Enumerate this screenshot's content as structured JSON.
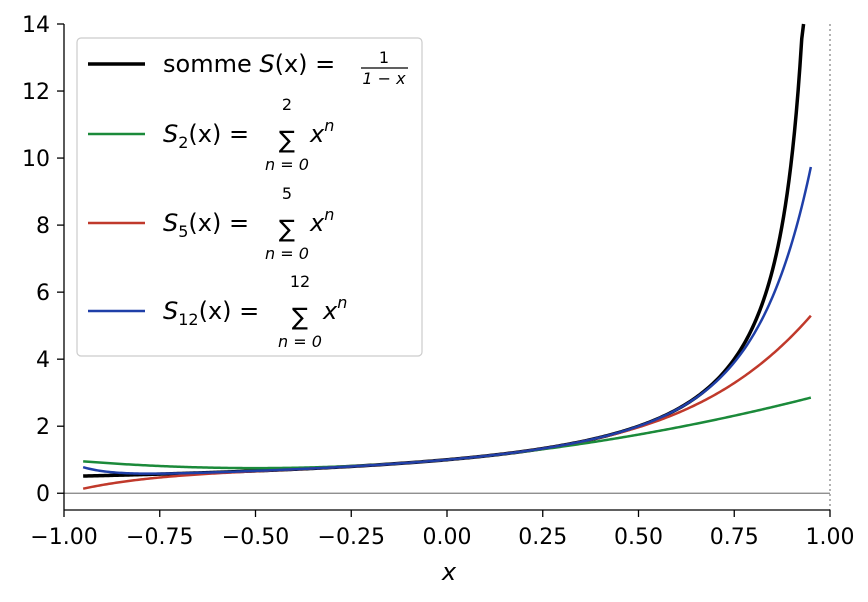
{
  "chart_data": {
    "type": "line",
    "xlabel": "x",
    "ylabel": "",
    "xlim": [
      -1.0,
      1.0
    ],
    "ylim": [
      -0.5,
      14
    ],
    "x_ticks": [
      -1.0,
      -0.75,
      -0.5,
      -0.25,
      0.0,
      0.25,
      0.5,
      0.75,
      1.0
    ],
    "x_tick_labels": [
      "−1.00",
      "−0.75",
      "−0.50",
      "−0.25",
      "0.00",
      "0.25",
      "0.50",
      "0.75",
      "1.00"
    ],
    "y_ticks": [
      0,
      2,
      4,
      6,
      8,
      10,
      12,
      14
    ],
    "y_tick_labels": [
      "0",
      "2",
      "4",
      "6",
      "8",
      "10",
      "12",
      "14"
    ],
    "grid": false,
    "legend_position": "top-left",
    "reference_lines": [
      {
        "orientation": "horizontal",
        "value": 0,
        "style": "solid",
        "color": "#808080"
      },
      {
        "orientation": "vertical",
        "value": 1.0,
        "style": "dotted",
        "color": "#808080"
      }
    ],
    "x_domain": [
      -0.95,
      0.95
    ],
    "series": [
      {
        "name": "somme S(x) = 1/(1−x)",
        "color": "#000000",
        "x": [
          -0.95,
          -0.75,
          -0.5,
          -0.25,
          0.0,
          0.25,
          0.5,
          0.6,
          0.7,
          0.75,
          0.8,
          0.85,
          0.9,
          0.93
        ],
        "y": [
          0.51,
          0.57,
          0.67,
          0.8,
          1.0,
          1.33,
          2.0,
          2.5,
          3.33,
          4.0,
          5.0,
          6.67,
          10.0,
          14.0
        ]
      },
      {
        "name": "S2(x) = ∑ n=0..2 x^n",
        "color": "#1b8a3a",
        "x": [
          -0.95,
          -0.75,
          -0.5,
          -0.25,
          0.0,
          0.25,
          0.5,
          0.75,
          0.95
        ],
        "y": [
          0.95,
          0.81,
          0.75,
          0.81,
          1.0,
          1.31,
          1.75,
          2.31,
          2.85
        ]
      },
      {
        "name": "S5(x) = ∑ n=0..5 x^n",
        "color": "#c0392b",
        "x": [
          -0.95,
          -0.75,
          -0.5,
          -0.25,
          0.0,
          0.25,
          0.5,
          0.75,
          0.95
        ],
        "y": [
          0.13,
          0.44,
          0.66,
          0.8,
          1.0,
          1.33,
          1.97,
          3.3,
          5.31
        ]
      },
      {
        "name": "S12(x) = ∑ n=0..12 x^n",
        "color": "#1f3fa8",
        "x": [
          -0.95,
          -0.75,
          -0.5,
          -0.25,
          0.0,
          0.25,
          0.5,
          0.75,
          0.95
        ],
        "y": [
          0.77,
          0.59,
          0.67,
          0.8,
          1.0,
          1.33,
          2.0,
          3.87,
          9.74
        ]
      }
    ]
  },
  "legend": {
    "entries": [
      {
        "prefix": "somme ",
        "fn": "S",
        "sub": "",
        "mid": "(x) = ",
        "frac_num": "1",
        "frac_den": "1 − x",
        "upper": "",
        "lower": "",
        "term": ""
      },
      {
        "prefix": "",
        "fn": "S",
        "sub": "2",
        "mid": "(x) = ",
        "frac_num": "",
        "frac_den": "",
        "upper": "2",
        "lower": "n = 0",
        "term": "x"
      },
      {
        "prefix": "",
        "fn": "S",
        "sub": "5",
        "mid": "(x) = ",
        "frac_num": "",
        "frac_den": "",
        "upper": "5",
        "lower": "n = 0",
        "term": "x"
      },
      {
        "prefix": "",
        "fn": "S",
        "sub": "12",
        "mid": "(x) = ",
        "frac_num": "",
        "frac_den": "",
        "upper": "12",
        "lower": "n = 0",
        "term": "x"
      }
    ],
    "sum_symbol": "∑",
    "exponent": "n"
  }
}
